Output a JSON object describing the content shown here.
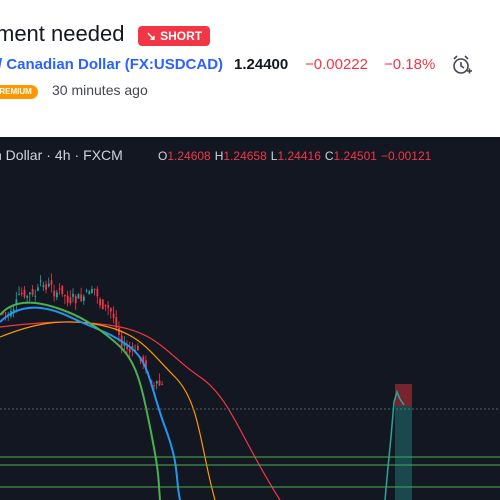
{
  "header": {
    "title": "ment needed",
    "badge_arrow": "↘",
    "badge_label": "SHORT",
    "symbol_name": "/ Canadian Dollar",
    "symbol_code_open": " (",
    "symbol_code": "FX:USDCAD",
    "symbol_code_close": ")",
    "price": "1.24400",
    "change": "−0.00222",
    "change_pct": "−0.18%",
    "premium_label": "PREMIUM",
    "time_ago": "30 minutes ago"
  },
  "chart": {
    "legend_symbol": "n Dollar",
    "interval": "4h",
    "source": "FXCM",
    "ohlc": {
      "o_label": "O",
      "o": "1.24608",
      "h_label": "H",
      "h": "1.24658",
      "l_label": "L",
      "l": "1.24416",
      "c_label": "C",
      "c": "1.24501",
      "change": "−0.00121"
    },
    "colors": {
      "background": "#131722",
      "down": "#f23645",
      "up": "#26a69a",
      "ma_blue": "#2196f3",
      "ma_green": "#4caf50",
      "ma_orange": "#ff9800",
      "ma_red": "#f23645",
      "level_line": "#4caf50"
    }
  }
}
